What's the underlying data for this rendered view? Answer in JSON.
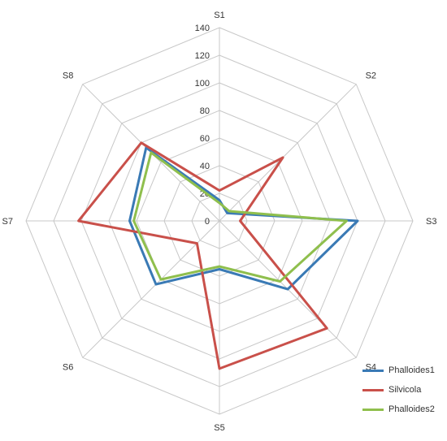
{
  "chart_data": {
    "type": "radar",
    "categories": [
      "S1",
      "S2",
      "S3",
      "S4",
      "S5",
      "S6",
      "S7",
      "S8"
    ],
    "rlim": [
      0,
      140
    ],
    "ticks": [
      0,
      20,
      40,
      60,
      80,
      100,
      120,
      140
    ],
    "grid": true,
    "legend_position": "bottom-right",
    "series": [
      {
        "name": "Phalloides1",
        "color": "#3a7ab5",
        "values": [
          15,
          8,
          100,
          70,
          35,
          65,
          65,
          75
        ]
      },
      {
        "name": "Silvicola",
        "color": "#c9504a",
        "values": [
          22,
          65,
          15,
          110,
          107,
          23,
          102,
          80
        ]
      },
      {
        "name": "Phalloides2",
        "color": "#8fbf4d",
        "values": [
          13,
          10,
          92,
          62,
          33,
          60,
          62,
          70
        ]
      }
    ]
  }
}
